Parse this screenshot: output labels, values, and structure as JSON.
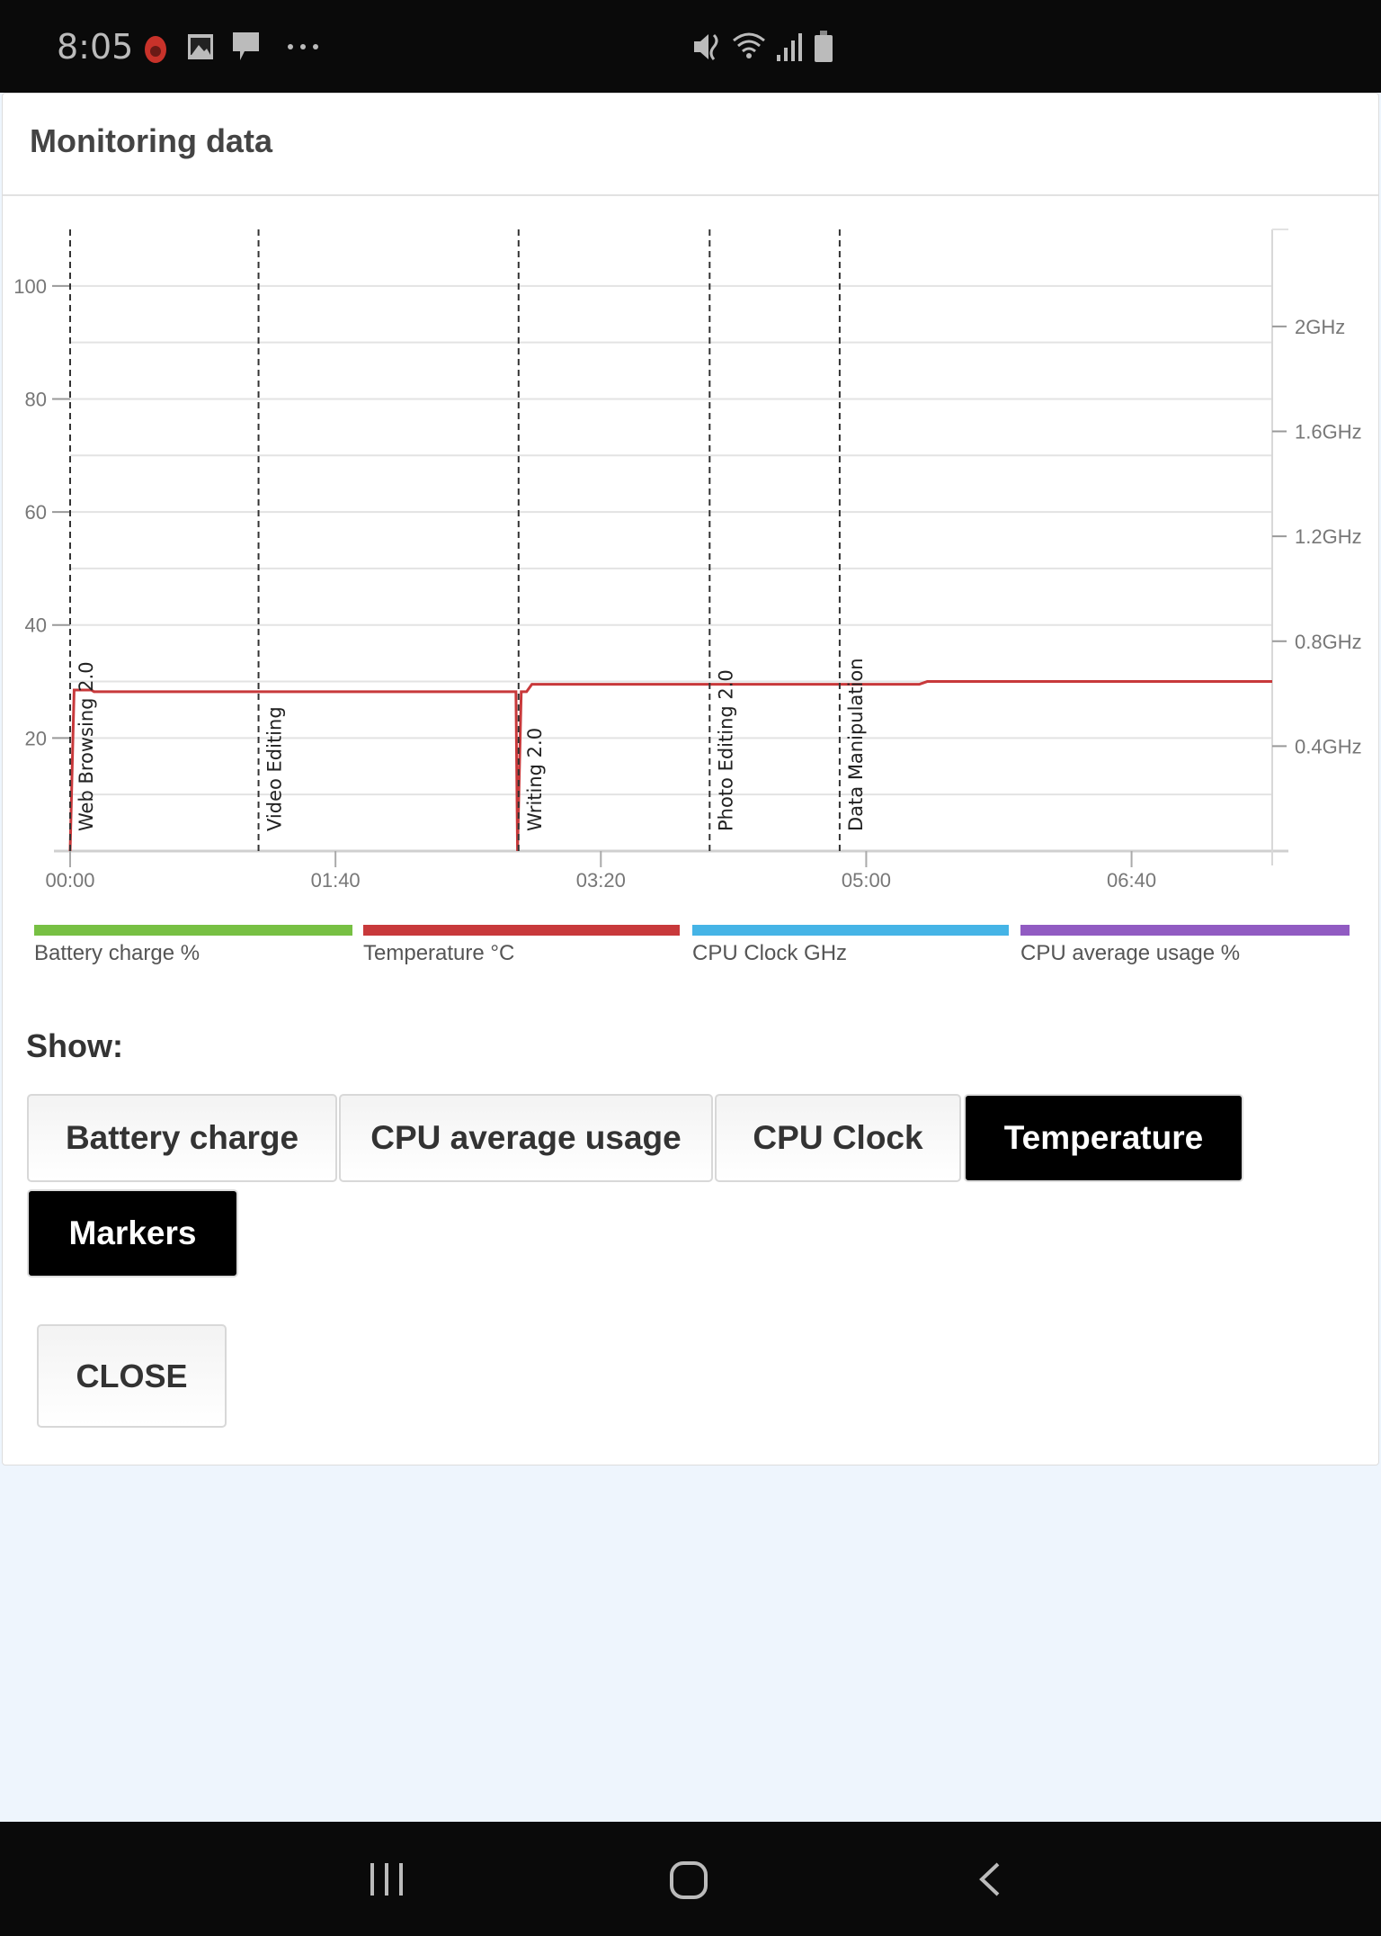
{
  "status_bar": {
    "time": "8:05",
    "icons": [
      "app-flame-icon",
      "image-icon",
      "message-icon",
      "more-icon",
      "mute-icon",
      "wifi-icon",
      "signal-icon",
      "battery-icon"
    ]
  },
  "dialog": {
    "title": "Monitoring data"
  },
  "chart_data": {
    "type": "line",
    "x_unit": "minutes",
    "x_ticks": [
      {
        "value": 0,
        "label": "00:00"
      },
      {
        "value": 100,
        "label": "01:40"
      },
      {
        "value": 200,
        "label": "03:20"
      },
      {
        "value": 300,
        "label": "05:00"
      },
      {
        "value": 400,
        "label": "06:40"
      }
    ],
    "xlim": [
      0,
      453
    ],
    "y_left": {
      "ylim": [
        0,
        110
      ],
      "ticks": [
        {
          "value": 20,
          "label": "20"
        },
        {
          "value": 40,
          "label": "40"
        },
        {
          "value": 60,
          "label": "60"
        },
        {
          "value": 80,
          "label": "80"
        },
        {
          "value": 100,
          "label": "100"
        }
      ],
      "grid_step": 10
    },
    "y_right": {
      "ylim": [
        0,
        2.37
      ],
      "ticks": [
        {
          "value": 0.4,
          "label": "0.4GHz"
        },
        {
          "value": 0.8,
          "label": "0.8GHz"
        },
        {
          "value": 1.2,
          "label": "1.2GHz"
        },
        {
          "value": 1.6,
          "label": "1.6GHz"
        },
        {
          "value": 2.0,
          "label": "2GHz"
        }
      ]
    },
    "grid": true,
    "series": [
      {
        "name": "Temperature °C",
        "color": "#c8393b",
        "points": [
          [
            0,
            0
          ],
          [
            1.5,
            28.5
          ],
          [
            8,
            28.5
          ],
          [
            9,
            28.2
          ],
          [
            168,
            28.2
          ],
          [
            168.6,
            0
          ],
          [
            170,
            28.2
          ],
          [
            172,
            28.2
          ],
          [
            174,
            29.5
          ],
          [
            320,
            29.5
          ],
          [
            323,
            30
          ],
          [
            453,
            30
          ]
        ]
      }
    ],
    "markers": [
      {
        "x": 0,
        "label": "Web Browsing 2.0"
      },
      {
        "x": 71,
        "label": "Video Editing"
      },
      {
        "x": 169,
        "label": "Writing 2.0"
      },
      {
        "x": 241,
        "label": "Photo Editing 2.0"
      },
      {
        "x": 290,
        "label": "Data Manipulation"
      }
    ],
    "legend": [
      {
        "label": "Battery charge %",
        "color": "#77c043"
      },
      {
        "label": "Temperature °C",
        "color": "#c8393b"
      },
      {
        "label": "CPU Clock GHz",
        "color": "#45b4e6"
      },
      {
        "label": "CPU average usage %",
        "color": "#915bc2"
      }
    ],
    "legend_placement": "bottom"
  },
  "show": {
    "label": "Show:",
    "buttons": [
      {
        "label": "Battery charge",
        "active": false
      },
      {
        "label": "CPU average usage",
        "active": false
      },
      {
        "label": "CPU Clock",
        "active": false
      },
      {
        "label": "Temperature",
        "active": true
      },
      {
        "label": "Markers",
        "active": true
      }
    ]
  },
  "close_label": "CLOSE",
  "nav": {
    "icons": [
      "recents-icon",
      "home-icon",
      "back-icon"
    ]
  }
}
